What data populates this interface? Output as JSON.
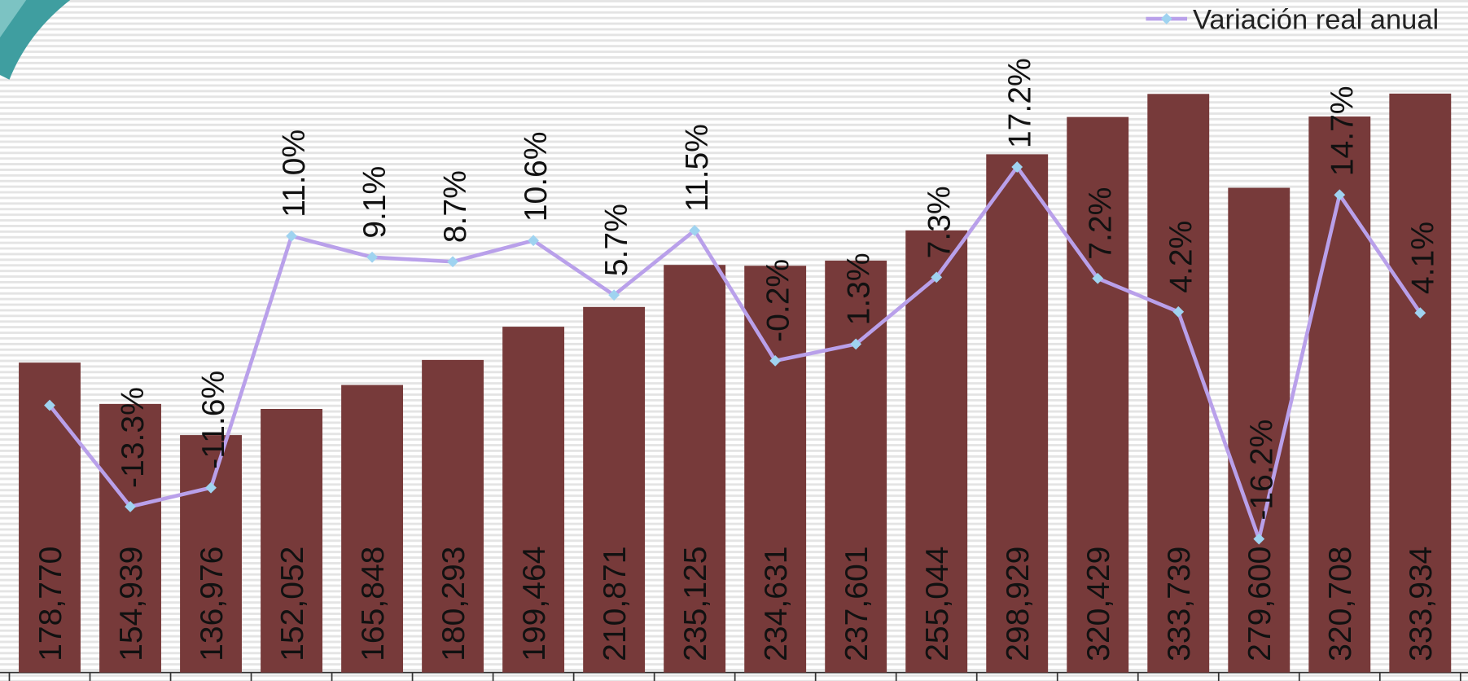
{
  "chart_data": {
    "type": "combo",
    "legend": "top-right",
    "ylim": [
      0,
      387900
    ],
    "y2lim": [
      -28.2,
      32.2
    ],
    "series": [
      {
        "type": "bar",
        "color": "#773a3a",
        "values": [
          178770,
          154939,
          136976,
          152052,
          165848,
          180293,
          199464,
          210871,
          235125,
          234631,
          237601,
          255044,
          298929,
          320429,
          333739,
          279600,
          320708,
          333934
        ],
        "value_labels": [
          "178,770",
          "154,939",
          "136,976",
          "152,052",
          "165,848",
          "180,293",
          "199,464",
          "210,871",
          "235,125",
          "234,631",
          "237,601",
          "255,044",
          "298,929",
          "320,429",
          "333,739",
          "279,600",
          "320,708",
          "333,934"
        ]
      },
      {
        "type": "line",
        "name": "Variación real anual",
        "color": "#b9a0ea",
        "marker_color": "#9fd3f0",
        "axis": "y2",
        "values": [
          -4.2,
          -13.3,
          -11.6,
          11.0,
          9.1,
          8.7,
          10.6,
          5.7,
          11.5,
          -0.2,
          1.3,
          7.3,
          17.2,
          7.2,
          4.2,
          -16.2,
          14.7,
          4.1
        ],
        "value_labels": [
          null,
          "-13.3%",
          "-11.6%",
          "11.0%",
          "9.1%",
          "8.7%",
          "10.6%",
          "5.7%",
          "11.5%",
          "-0.2%",
          "1.3%",
          "7.3%",
          "17.2%",
          "7.2%",
          "4.2%",
          "-16.2%",
          "14.7%",
          "4.1%"
        ]
      }
    ]
  }
}
